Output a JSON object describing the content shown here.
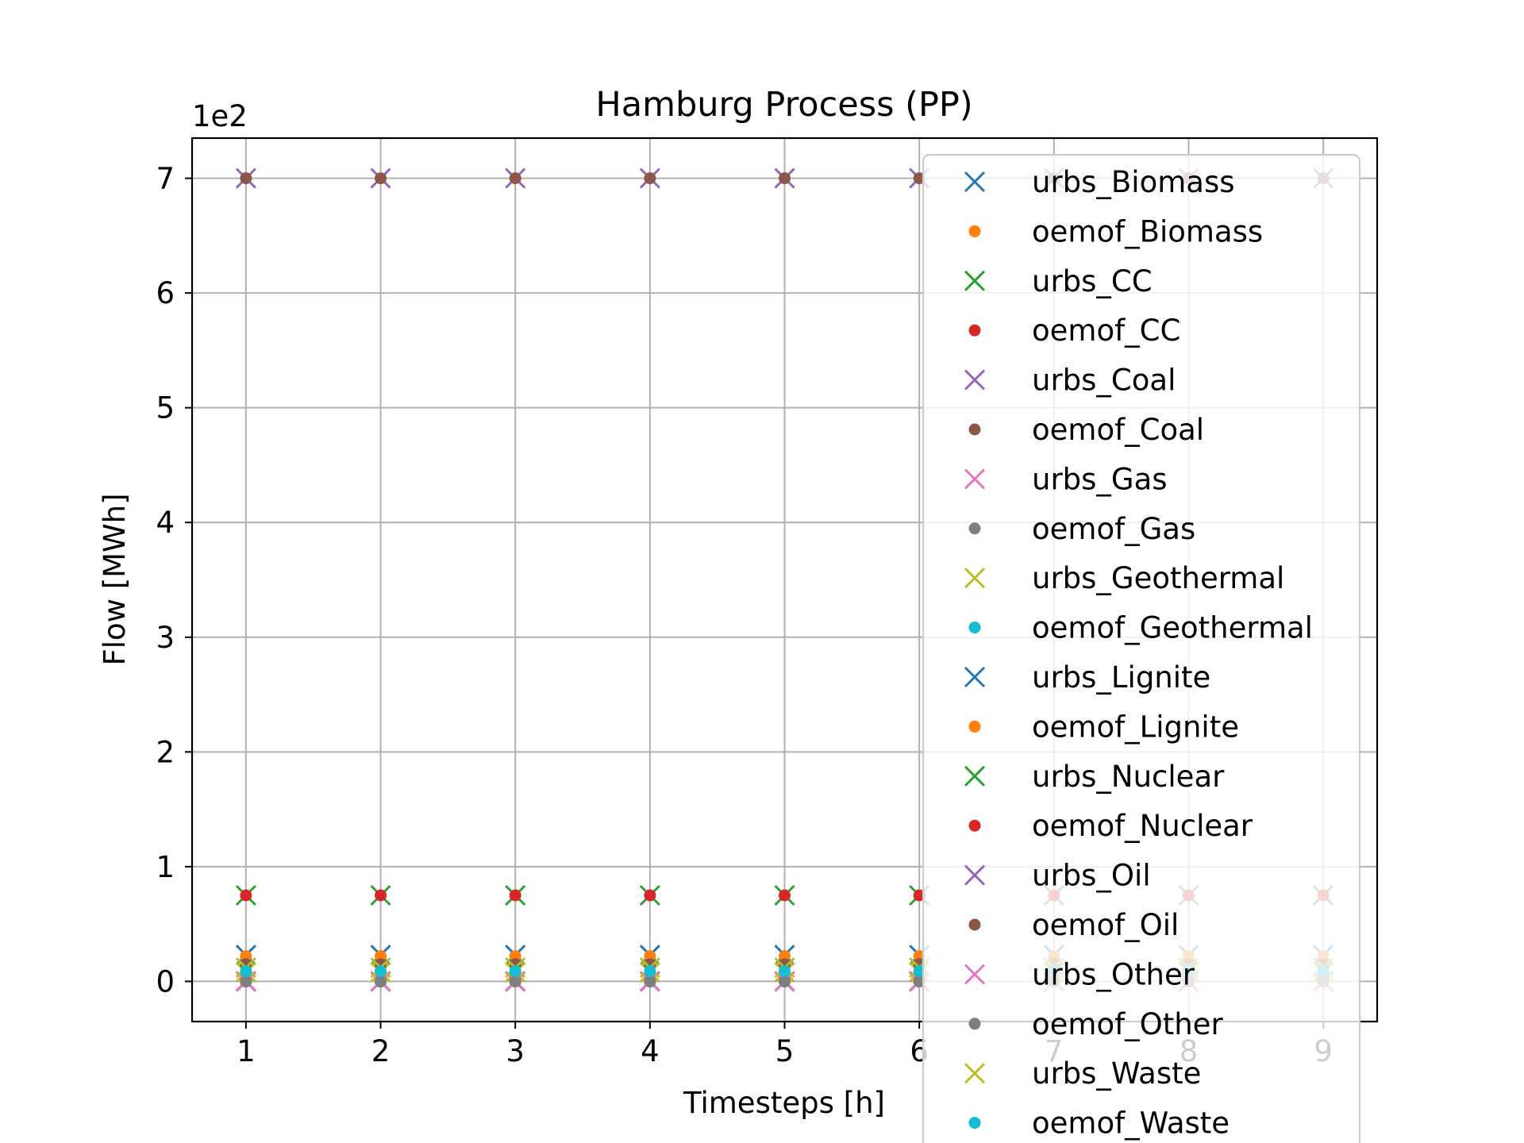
{
  "chart_data": {
    "type": "scatter",
    "title": "Hamburg Process (PP)",
    "xlabel": "Timesteps [h]",
    "ylabel": "Flow [MWh]",
    "y_offset_text": "1e2",
    "x": [
      1,
      2,
      3,
      4,
      5,
      6,
      7,
      8,
      9
    ],
    "xlim": [
      0.6,
      9.4
    ],
    "ylim": [
      -0.35,
      7.35
    ],
    "xticks": [
      "1",
      "2",
      "3",
      "4",
      "5",
      "6",
      "7",
      "8",
      "9"
    ],
    "yticks": [
      "0",
      "1",
      "2",
      "3",
      "4",
      "5",
      "6",
      "7"
    ],
    "grid": true,
    "legend_position": "top-right",
    "series": [
      {
        "name": "urbs_Biomass",
        "marker": "x",
        "color": "#1f77b4",
        "values": [
          0.23,
          0.23,
          0.23,
          0.23,
          0.23,
          0.23,
          0.23,
          0.23,
          0.23
        ]
      },
      {
        "name": "oemof_Biomass",
        "marker": "dot",
        "color": "#ff7f0e",
        "values": [
          0.22,
          0.22,
          0.22,
          0.22,
          0.22,
          0.22,
          0.22,
          0.22,
          0.22
        ]
      },
      {
        "name": "urbs_CC",
        "marker": "x",
        "color": "#2ca02c",
        "values": [
          0.75,
          0.75,
          0.75,
          0.75,
          0.75,
          0.75,
          0.75,
          0.75,
          0.75
        ]
      },
      {
        "name": "oemof_CC",
        "marker": "dot",
        "color": "#d62728",
        "values": [
          0.75,
          0.75,
          0.75,
          0.75,
          0.75,
          0.75,
          0.75,
          0.75,
          0.75
        ]
      },
      {
        "name": "urbs_Coal",
        "marker": "x",
        "color": "#9467bd",
        "values": [
          7.0,
          7.0,
          7.0,
          7.0,
          7.0,
          7.0,
          7.0,
          7.0,
          7.0
        ]
      },
      {
        "name": "oemof_Coal",
        "marker": "dot",
        "color": "#8c564b",
        "values": [
          7.0,
          7.0,
          7.0,
          7.0,
          7.0,
          7.0,
          7.0,
          7.0,
          7.0
        ]
      },
      {
        "name": "urbs_Gas",
        "marker": "x",
        "color": "#e377c2",
        "values": [
          0.0,
          0.0,
          0.0,
          0.0,
          0.0,
          0.0,
          0.0,
          0.0,
          0.0
        ]
      },
      {
        "name": "oemof_Gas",
        "marker": "dot",
        "color": "#7f7f7f",
        "values": [
          0.0,
          0.0,
          0.0,
          0.0,
          0.0,
          0.0,
          0.0,
          0.0,
          0.0
        ]
      },
      {
        "name": "urbs_Geothermal",
        "marker": "x",
        "color": "#bcbd22",
        "values": [
          0.08,
          0.08,
          0.08,
          0.08,
          0.08,
          0.08,
          0.08,
          0.08,
          0.08
        ]
      },
      {
        "name": "oemof_Geothermal",
        "marker": "dot",
        "color": "#17becf",
        "values": [
          0.08,
          0.08,
          0.08,
          0.08,
          0.08,
          0.08,
          0.08,
          0.08,
          0.08
        ]
      },
      {
        "name": "urbs_Lignite",
        "marker": "x",
        "color": "#1f77b4",
        "values": [
          0.0,
          0.0,
          0.0,
          0.0,
          0.0,
          0.0,
          0.0,
          0.0,
          0.0
        ]
      },
      {
        "name": "oemof_Lignite",
        "marker": "dot",
        "color": "#ff7f0e",
        "values": [
          0.0,
          0.0,
          0.0,
          0.0,
          0.0,
          0.0,
          0.0,
          0.0,
          0.0
        ]
      },
      {
        "name": "urbs_Nuclear",
        "marker": "x",
        "color": "#2ca02c",
        "values": [
          0.0,
          0.0,
          0.0,
          0.0,
          0.0,
          0.0,
          0.0,
          0.0,
          0.0
        ]
      },
      {
        "name": "oemof_Nuclear",
        "marker": "dot",
        "color": "#d62728",
        "values": [
          0.0,
          0.0,
          0.0,
          0.0,
          0.0,
          0.0,
          0.0,
          0.0,
          0.0
        ]
      },
      {
        "name": "urbs_Oil",
        "marker": "x",
        "color": "#9467bd",
        "values": [
          0.0,
          0.0,
          0.0,
          0.0,
          0.0,
          0.0,
          0.0,
          0.0,
          0.0
        ]
      },
      {
        "name": "oemof_Oil",
        "marker": "dot",
        "color": "#8c564b",
        "values": [
          0.15,
          0.15,
          0.15,
          0.15,
          0.15,
          0.15,
          0.15,
          0.15,
          0.15
        ]
      },
      {
        "name": "urbs_Other",
        "marker": "x",
        "color": "#e377c2",
        "values": [
          0.0,
          0.0,
          0.0,
          0.0,
          0.0,
          0.0,
          0.0,
          0.0,
          0.0
        ]
      },
      {
        "name": "oemof_Other",
        "marker": "dot",
        "color": "#7f7f7f",
        "values": [
          0.0,
          0.0,
          0.0,
          0.0,
          0.0,
          0.0,
          0.0,
          0.0,
          0.0
        ]
      },
      {
        "name": "urbs_Waste",
        "marker": "x",
        "color": "#bcbd22",
        "values": [
          0.12,
          0.12,
          0.12,
          0.12,
          0.12,
          0.12,
          0.12,
          0.12,
          0.12
        ]
      },
      {
        "name": "oemof_Waste",
        "marker": "dot",
        "color": "#17becf",
        "values": [
          0.09,
          0.09,
          0.09,
          0.09,
          0.09,
          0.09,
          0.09,
          0.09,
          0.09
        ]
      }
    ]
  }
}
